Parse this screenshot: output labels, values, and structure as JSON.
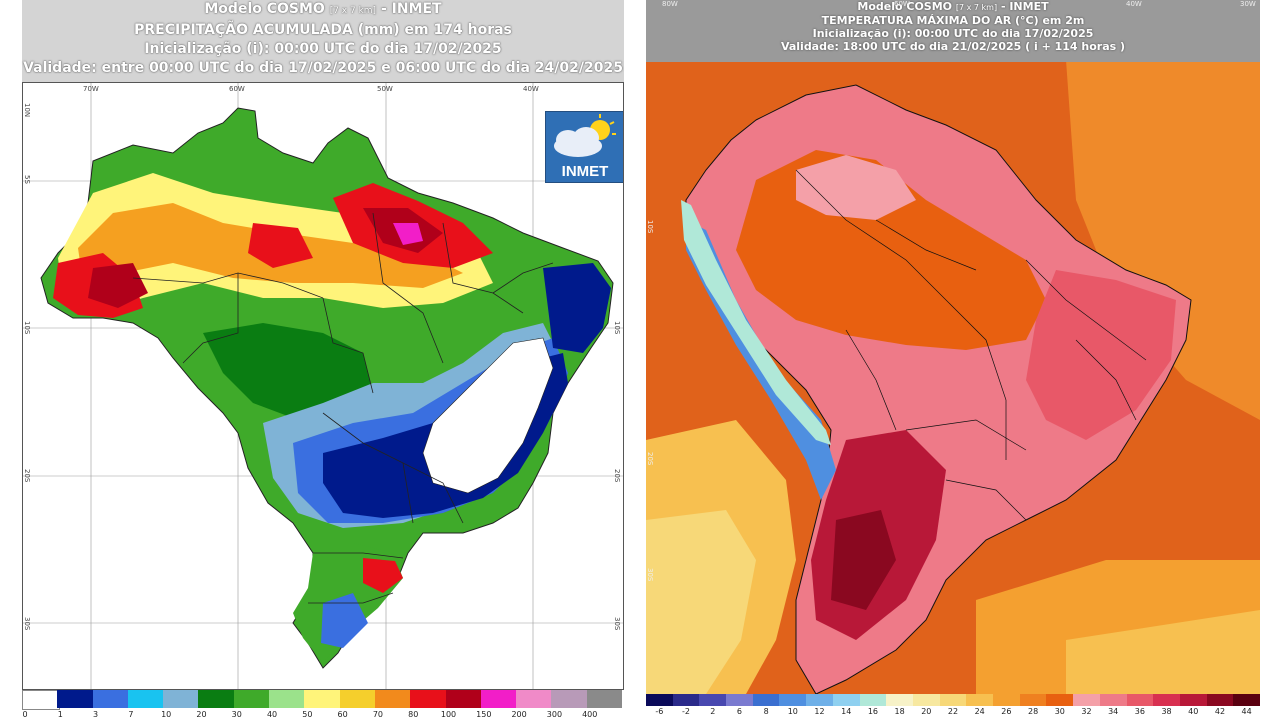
{
  "left_panel": {
    "title_model": "Modelo COSMO",
    "title_res": "[7 x 7 km]",
    "title_org": "- INMET",
    "title_var": "PRECIPITAÇÃO ACUMULADA (mm) em 174 horas",
    "init": "Inicialização (i): 00:00 UTC do dia 17/02/2025",
    "validity": "Validade: entre 00:00 UTC do dia 17/02/2025 e 06:00 UTC do dia 24/02/2025",
    "logo_text": "INMET",
    "lon_labels": [
      "70W",
      "60W",
      "50W",
      "40W"
    ],
    "lat_labels": [
      "5S",
      "10S",
      "20S",
      "30S"
    ],
    "lat_labels_right": [
      "10S",
      "20S",
      "30S"
    ],
    "lat_top": "10N",
    "scale_labels": [
      "0",
      "1",
      "3",
      "7",
      "10",
      "20",
      "30",
      "40",
      "50",
      "60",
      "70",
      "80",
      "100",
      "150",
      "200",
      "300",
      "400"
    ],
    "scale_colors": [
      "#ffffff",
      "#001a8c",
      "#3a6fe0",
      "#19c3f0",
      "#7fb3d6",
      "#0a7d12",
      "#3faa2a",
      "#9be28b",
      "#fff47a",
      "#f5cf2c",
      "#f28a1c",
      "#e8101a",
      "#b0001a",
      "#f21ec8",
      "#f08ac8",
      "#b89ab8",
      "#8a8a8a"
    ]
  },
  "right_panel": {
    "title_model": "Modelo COSMO",
    "title_res": "[7 x 7 km]",
    "title_org": "- INMET",
    "title_var": "TEMPERATURA MÁXIMA DO AR (°C) em 2m",
    "init": "Inicialização (i): 00:00 UTC do dia 17/02/2025",
    "validity": "Validade: 18:00 UTC do dia 21/02/2025 ( i + 114 horas )",
    "lon_labels": [
      "80W",
      "60W",
      "40W",
      "30W"
    ],
    "lat_labels": [
      "10S",
      "20S",
      "30S"
    ],
    "scale_labels": [
      "-6",
      "-2",
      "2",
      "6",
      "8",
      "10",
      "12",
      "14",
      "16",
      "18",
      "20",
      "22",
      "24",
      "26",
      "28",
      "30",
      "32",
      "34",
      "36",
      "38",
      "40",
      "42",
      "44"
    ],
    "scale_colors": [
      "#0a0a5a",
      "#2a2a8a",
      "#4848b0",
      "#7a7ad0",
      "#3a6fd0",
      "#4f8fe0",
      "#6fb0e8",
      "#8fd0f0",
      "#b0e8d8",
      "#f7f2c8",
      "#f7e8a0",
      "#f7d878",
      "#f7c050",
      "#f4a030",
      "#ef8020",
      "#e86010",
      "#f4a0a8",
      "#ee7a88",
      "#e85868",
      "#d83050",
      "#b81838",
      "#8a0820",
      "#5a0010"
    ]
  }
}
